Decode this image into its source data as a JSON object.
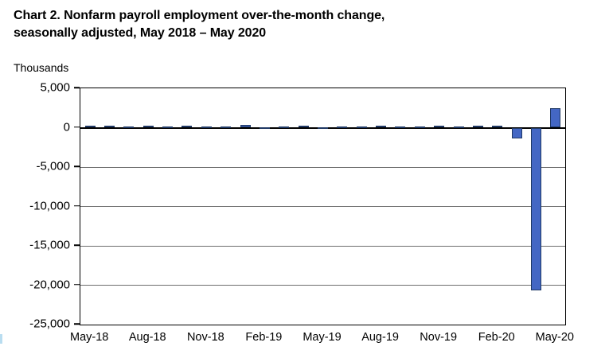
{
  "header": {
    "title_line1": "Chart 2. Nonfarm payroll employment over-the-month change,",
    "title_line2": "seasonally adjusted, May 2018 – May 2020",
    "axis_unit_label": "Thousands"
  },
  "chart_data": {
    "type": "bar",
    "title": "Chart 2. Nonfarm payroll employment over-the-month change, seasonally adjusted, May 2018 – May 2020",
    "ylabel": "Thousands",
    "xlabel": "",
    "ylim": [
      -25000,
      5000
    ],
    "grid": true,
    "legend": false,
    "categories": [
      "May-18",
      "Jun-18",
      "Jul-18",
      "Aug-18",
      "Sep-18",
      "Oct-18",
      "Nov-18",
      "Dec-18",
      "Jan-19",
      "Feb-19",
      "Mar-19",
      "Apr-19",
      "May-19",
      "Jun-19",
      "Jul-19",
      "Aug-19",
      "Sep-19",
      "Oct-19",
      "Nov-19",
      "Dec-19",
      "Jan-20",
      "Feb-20",
      "Mar-20",
      "Apr-20",
      "May-20"
    ],
    "values": [
      270,
      208,
      178,
      282,
      108,
      277,
      170,
      182,
      312,
      25,
      147,
      210,
      85,
      182,
      166,
      219,
      193,
      152,
      261,
      184,
      214,
      251,
      -1373,
      -20687,
      2509
    ],
    "y_ticks": [
      5000,
      0,
      -5000,
      -10000,
      -15000,
      -20000,
      -25000
    ],
    "y_tick_labels": [
      "5,000",
      "0",
      "-5,000",
      "-10,000",
      "-15,000",
      "-20,000",
      "-25,000"
    ],
    "x_tick_indices": [
      0,
      3,
      6,
      9,
      12,
      15,
      18,
      21,
      24
    ],
    "x_tick_labels": [
      "May-18",
      "Aug-18",
      "Nov-18",
      "Feb-19",
      "May-19",
      "Aug-19",
      "Nov-19",
      "Feb-20",
      "May-20"
    ],
    "bar_color": "#4467c4",
    "bar_border_color": "#1f3864",
    "gridline_color": "#6e6e6e"
  }
}
